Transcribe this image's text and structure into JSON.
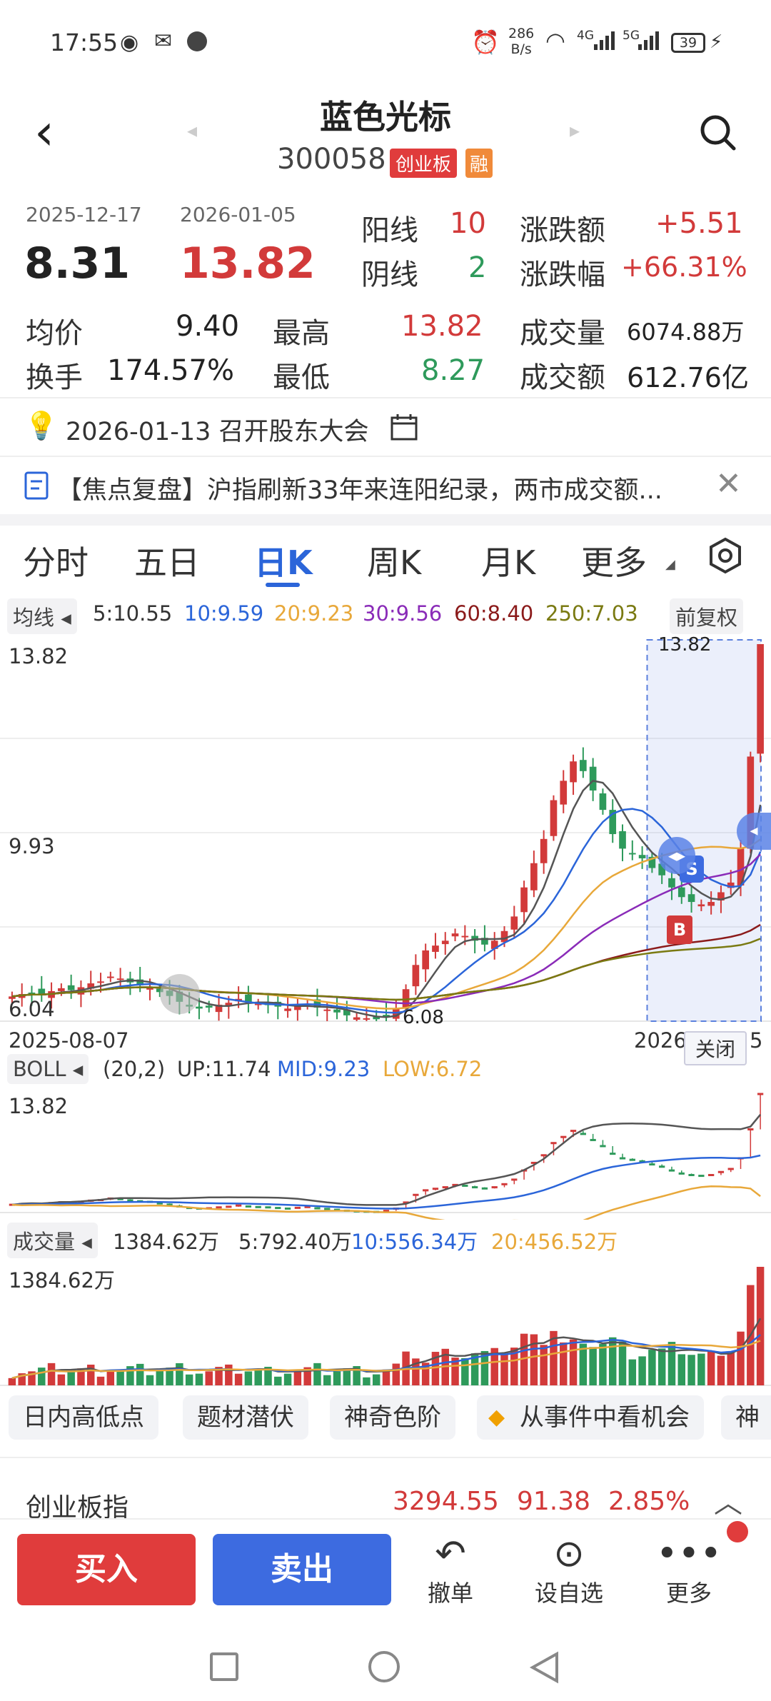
{
  "status_bar": {
    "time": "17:55",
    "net_speed_value": "286",
    "net_speed_unit": "B/s",
    "signal_4g": "4G",
    "signal_5g": "5G",
    "battery": "39"
  },
  "header": {
    "title": "蓝色光标",
    "code": "300058",
    "tag_board": "创业板",
    "tag_margin": "融"
  },
  "range": {
    "start_date": "2025-12-17",
    "end_date": "2026-01-05",
    "start_price": "8.31",
    "end_price": "13.82",
    "yang_label": "阳线",
    "yang_count": "10",
    "yin_label": "阴线",
    "yin_count": "2",
    "change_amt_label": "涨跌额",
    "change_amt": "+5.51",
    "change_pct_label": "涨跌幅",
    "change_pct": "+66.31%",
    "avg_label": "均价",
    "avg": "9.40",
    "high_label": "最高",
    "high": "13.82",
    "volume_label": "成交量",
    "volume": "6074.88万",
    "turnover_label": "换手",
    "turnover": "174.57%",
    "low_label": "最低",
    "low": "8.27",
    "amount_label": "成交额",
    "amount": "612.76亿"
  },
  "notices": {
    "meeting": "2026-01-13 召开股东大会",
    "news": "【焦点复盘】沪指刷新33年来连阳纪录，两市成交额..."
  },
  "tabs": [
    "分时",
    "五日",
    "日K",
    "周K",
    "月K",
    "更多"
  ],
  "ma_legend": {
    "label": "均线",
    "ma5": "5:10.55",
    "ma10": "10:9.59",
    "ma20": "20:9.23",
    "ma30": "30:9.56",
    "ma60": "60:8.40",
    "ma250": "250:7.03",
    "adjust": "前复权"
  },
  "kline": {
    "y_top": "13.82",
    "y_mid": "9.93",
    "y_bottom": "6.04",
    "date_start": "2025-08-07",
    "date_end": "2026-",
    "date_end_suffix": "5",
    "max_marker": "13.82",
    "min_marker": "6.08",
    "close_label": "关闭",
    "buy_marker": "B",
    "sell_marker": "S"
  },
  "boll": {
    "label": "BOLL",
    "params": "(20,2)",
    "up": "UP:11.74",
    "mid": "MID:9.23",
    "low": "LOW:6.72",
    "y_top": "13.82"
  },
  "volume": {
    "label": "成交量",
    "current": "1384.62万",
    "ma5": "5:792.40万",
    "ma10": "10:556.34万",
    "ma20": "20:456.52万",
    "y_top": "1384.62万"
  },
  "features": [
    "日内高低点",
    "题材潜伏",
    "神奇色阶",
    "从事件中看机会",
    "神"
  ],
  "index_bar": {
    "name": "创业板指",
    "value": "3294.55",
    "change": "91.38",
    "pct": "2.85%"
  },
  "actions": {
    "buy": "买入",
    "sell": "卖出",
    "cancel": "撤单",
    "watchlist": "设自选",
    "more": "更多"
  },
  "colors": {
    "up": "#d23a3a",
    "down": "#2e9a5b",
    "accent": "#2b65d9",
    "buy": "#e03c3c",
    "sell": "#3d6be0"
  },
  "chart_data": {
    "type": "candlestick",
    "ylim": [
      6.04,
      13.82
    ],
    "closes": [
      6.55,
      6.6,
      6.62,
      6.58,
      6.66,
      6.72,
      6.68,
      6.74,
      6.82,
      6.86,
      6.96,
      6.92,
      6.84,
      6.78,
      6.74,
      6.64,
      6.56,
      6.44,
      6.34,
      6.3,
      6.32,
      6.38,
      6.42,
      6.5,
      6.44,
      6.4,
      6.38,
      6.34,
      6.3,
      6.35,
      6.4,
      6.32,
      6.28,
      6.22,
      6.16,
      6.12,
      6.1,
      6.08,
      6.15,
      6.3,
      6.7,
      7.2,
      7.5,
      7.6,
      7.7,
      7.85,
      7.8,
      7.7,
      7.62,
      7.7,
      7.9,
      8.2,
      8.8,
      9.3,
      9.8,
      10.6,
      11.0,
      11.4,
      11.2,
      10.8,
      10.4,
      9.9,
      9.6,
      9.5,
      9.4,
      9.2,
      9.05,
      8.8,
      8.6,
      8.5,
      8.45,
      8.5,
      8.7,
      8.9,
      9.6,
      11.5,
      13.82
    ]
  }
}
